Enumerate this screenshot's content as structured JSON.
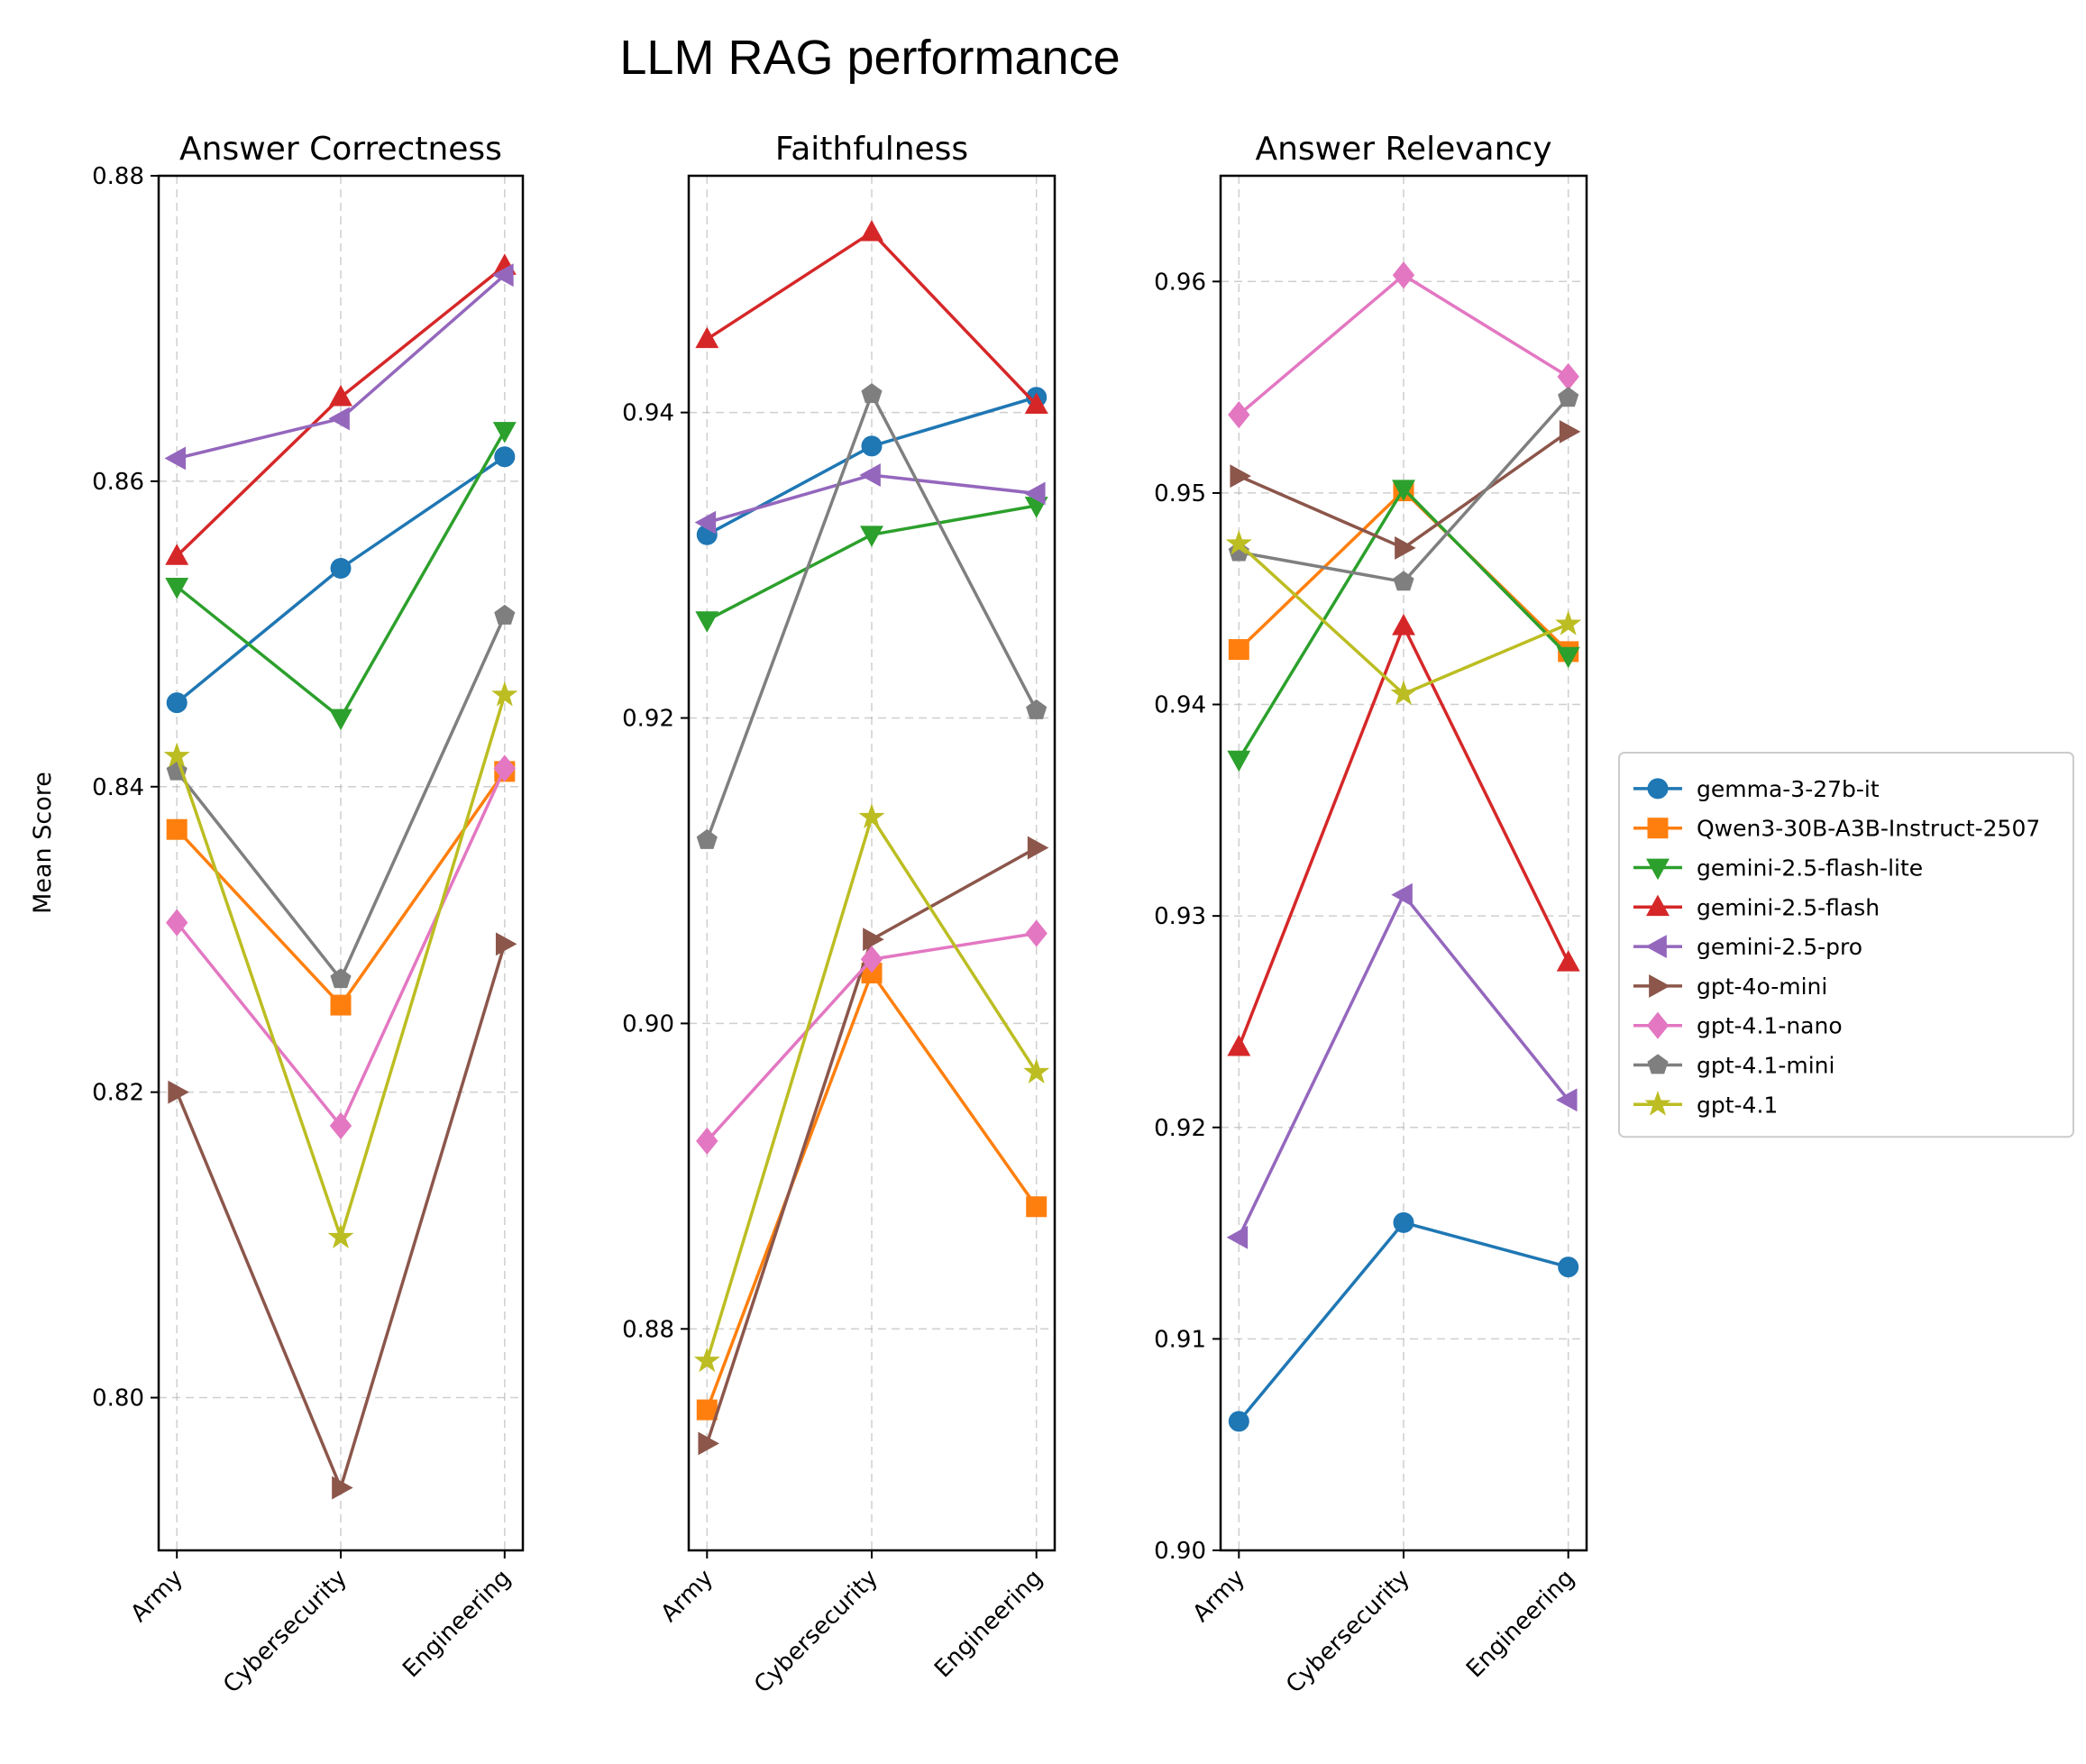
{
  "figure": {
    "title": "LLM RAG performance",
    "ylabel": "Mean Score"
  },
  "legend": {
    "placement": "right",
    "entries": [
      "gemma-3-27b-it",
      "Qwen3-30B-A3B-Instruct-2507",
      "gemini-2.5-flash-lite",
      "gemini-2.5-flash",
      "gemini-2.5-pro",
      "gpt-4o-mini",
      "gpt-4.1-nano",
      "gpt-4.1-mini",
      "gpt-4.1"
    ]
  },
  "chart_data": [
    {
      "type": "line",
      "title": "Answer Correctness",
      "categories": [
        "Army",
        "Cybersecurity",
        "Engineering"
      ],
      "ylim": [
        0.79,
        0.88
      ],
      "yticks": [
        "0.80",
        "0.82",
        "0.84",
        "0.86",
        "0.88"
      ],
      "grid": true,
      "series": [
        {
          "name": "gemma-3-27b-it",
          "color": "#1f77b4",
          "marker": "circle",
          "values": [
            0.8455,
            0.8543,
            0.8616
          ]
        },
        {
          "name": "Qwen3-30B-A3B-Instruct-2507",
          "color": "#ff7f0e",
          "marker": "square",
          "values": [
            0.8372,
            0.8257,
            0.841
          ]
        },
        {
          "name": "gemini-2.5-flash-lite",
          "color": "#2ca02c",
          "marker": "triangle-down",
          "values": [
            0.8531,
            0.8445,
            0.8633
          ]
        },
        {
          "name": "gemini-2.5-flash",
          "color": "#d62728",
          "marker": "triangle-up",
          "values": [
            0.8551,
            0.8655,
            0.8741
          ]
        },
        {
          "name": "gemini-2.5-pro",
          "color": "#9467bd",
          "marker": "triangle-left",
          "values": [
            0.8615,
            0.8641,
            0.8735
          ]
        },
        {
          "name": "gpt-4o-mini",
          "color": "#8c564b",
          "marker": "triangle-right",
          "values": [
            0.82,
            0.7941,
            0.8297
          ]
        },
        {
          "name": "gpt-4.1-nano",
          "color": "#e377c2",
          "marker": "diamond",
          "values": [
            0.8311,
            0.8178,
            0.8412
          ]
        },
        {
          "name": "gpt-4.1-mini",
          "color": "#7f7f7f",
          "marker": "pentagon",
          "values": [
            0.841,
            0.8274,
            0.8512
          ]
        },
        {
          "name": "gpt-4.1",
          "color": "#bcbd22",
          "marker": "star",
          "values": [
            0.842,
            0.8105,
            0.846
          ]
        }
      ]
    },
    {
      "type": "line",
      "title": "Faithfulness",
      "categories": [
        "Army",
        "Cybersecurity",
        "Engineering"
      ],
      "ylim": [
        0.8655,
        0.9555
      ],
      "yticks": [
        "0.88",
        "0.90",
        "0.92",
        "0.94"
      ],
      "grid": true,
      "series": [
        {
          "name": "gemma-3-27b-it",
          "color": "#1f77b4",
          "marker": "circle",
          "values": [
            0.932,
            0.9378,
            0.941
          ]
        },
        {
          "name": "Qwen3-30B-A3B-Instruct-2507",
          "color": "#ff7f0e",
          "marker": "square",
          "values": [
            0.8747,
            0.9033,
            0.888
          ]
        },
        {
          "name": "gemini-2.5-flash-lite",
          "color": "#2ca02c",
          "marker": "triangle-down",
          "values": [
            0.9264,
            0.932,
            0.9339
          ]
        },
        {
          "name": "gemini-2.5-flash",
          "color": "#d62728",
          "marker": "triangle-up",
          "values": [
            0.9448,
            0.9518,
            0.9405
          ]
        },
        {
          "name": "gemini-2.5-pro",
          "color": "#9467bd",
          "marker": "triangle-left",
          "values": [
            0.9328,
            0.9359,
            0.9347
          ]
        },
        {
          "name": "gpt-4o-mini",
          "color": "#8c564b",
          "marker": "triangle-right",
          "values": [
            0.8725,
            0.9055,
            0.9115
          ]
        },
        {
          "name": "gpt-4.1-nano",
          "color": "#e377c2",
          "marker": "diamond",
          "values": [
            0.8923,
            0.9042,
            0.9059
          ]
        },
        {
          "name": "gpt-4.1-mini",
          "color": "#7f7f7f",
          "marker": "pentagon",
          "values": [
            0.912,
            0.9412,
            0.9205
          ]
        },
        {
          "name": "gpt-4.1",
          "color": "#bcbd22",
          "marker": "star",
          "values": [
            0.8779,
            0.9135,
            0.8968
          ]
        }
      ]
    },
    {
      "type": "line",
      "title": "Answer Relevancy",
      "categories": [
        "Army",
        "Cybersecurity",
        "Engineering"
      ],
      "ylim": [
        0.9,
        0.965
      ],
      "yticks": [
        "0.90",
        "0.91",
        "0.92",
        "0.93",
        "0.94",
        "0.95",
        "0.96"
      ],
      "grid": true,
      "series": [
        {
          "name": "gemma-3-27b-it",
          "color": "#1f77b4",
          "marker": "circle",
          "values": [
            0.9061,
            0.9155,
            0.9134
          ]
        },
        {
          "name": "Qwen3-30B-A3B-Instruct-2507",
          "color": "#ff7f0e",
          "marker": "square",
          "values": [
            0.9426,
            0.9501,
            0.9425
          ]
        },
        {
          "name": "gemini-2.5-flash-lite",
          "color": "#2ca02c",
          "marker": "triangle-down",
          "values": [
            0.9374,
            0.9502,
            0.9423
          ]
        },
        {
          "name": "gemini-2.5-flash",
          "color": "#d62728",
          "marker": "triangle-up",
          "values": [
            0.9238,
            0.9437,
            0.9278
          ]
        },
        {
          "name": "gemini-2.5-pro",
          "color": "#9467bd",
          "marker": "triangle-left",
          "values": [
            0.9148,
            0.931,
            0.9213
          ]
        },
        {
          "name": "gpt-4o-mini",
          "color": "#8c564b",
          "marker": "triangle-right",
          "values": [
            0.9508,
            0.9474,
            0.9529
          ]
        },
        {
          "name": "gpt-4.1-nano",
          "color": "#e377c2",
          "marker": "diamond",
          "values": [
            0.9537,
            0.9603,
            0.9555
          ]
        },
        {
          "name": "gpt-4.1-mini",
          "color": "#7f7f7f",
          "marker": "pentagon",
          "values": [
            0.9472,
            0.9458,
            0.9545
          ]
        },
        {
          "name": "gpt-4.1",
          "color": "#bcbd22",
          "marker": "star",
          "values": [
            0.9476,
            0.9405,
            0.9438
          ]
        }
      ]
    }
  ]
}
